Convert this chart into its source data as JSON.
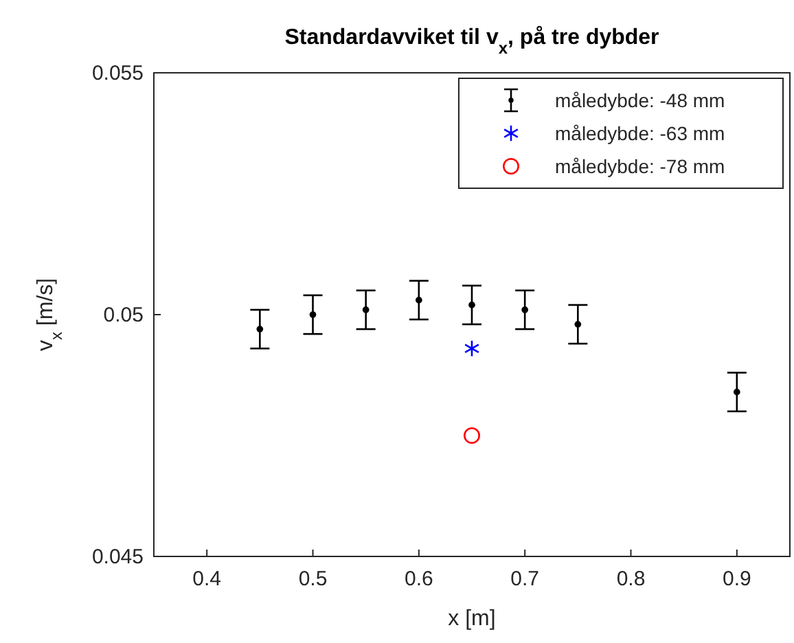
{
  "chart_data": {
    "type": "scatter",
    "title": "Standardavviket til v$_{x}$, på tre dybder",
    "xlabel": "x [m]",
    "ylabel": "v$_{x}$ [m/s]",
    "xlim": [
      0.35,
      0.95
    ],
    "xticks": [
      0.4,
      0.5,
      0.6,
      0.7,
      0.8,
      0.9
    ],
    "ylim": [
      0.045,
      0.055
    ],
    "yticks": [
      0.045,
      0.05,
      0.055
    ],
    "grid": false,
    "legend": "top right",
    "series": [
      {
        "name": "måledybde: -48 mm",
        "color": "#000000",
        "marker": "circle",
        "x": [
          0.45,
          0.5,
          0.55,
          0.6,
          0.65,
          0.7,
          0.75,
          0.9
        ],
        "values": [
          0.0497,
          0.05,
          0.0501,
          0.0503,
          0.0502,
          0.0501,
          0.0498,
          0.0484
        ],
        "errors": [
          0.0004,
          0.0004,
          0.0004,
          0.0004,
          0.0004,
          0.0004,
          0.0004,
          0.0004
        ]
      },
      {
        "name": "måledybde: -63 mm",
        "color": "#0000ff",
        "marker": "cross",
        "x": [
          0.65
        ],
        "values": [
          0.0493
        ]
      },
      {
        "name": "måledybde: -78 mm",
        "color": "#ff0000",
        "marker": "circle",
        "x": [
          0.65
        ],
        "values": [
          0.0475
        ]
      }
    ]
  }
}
